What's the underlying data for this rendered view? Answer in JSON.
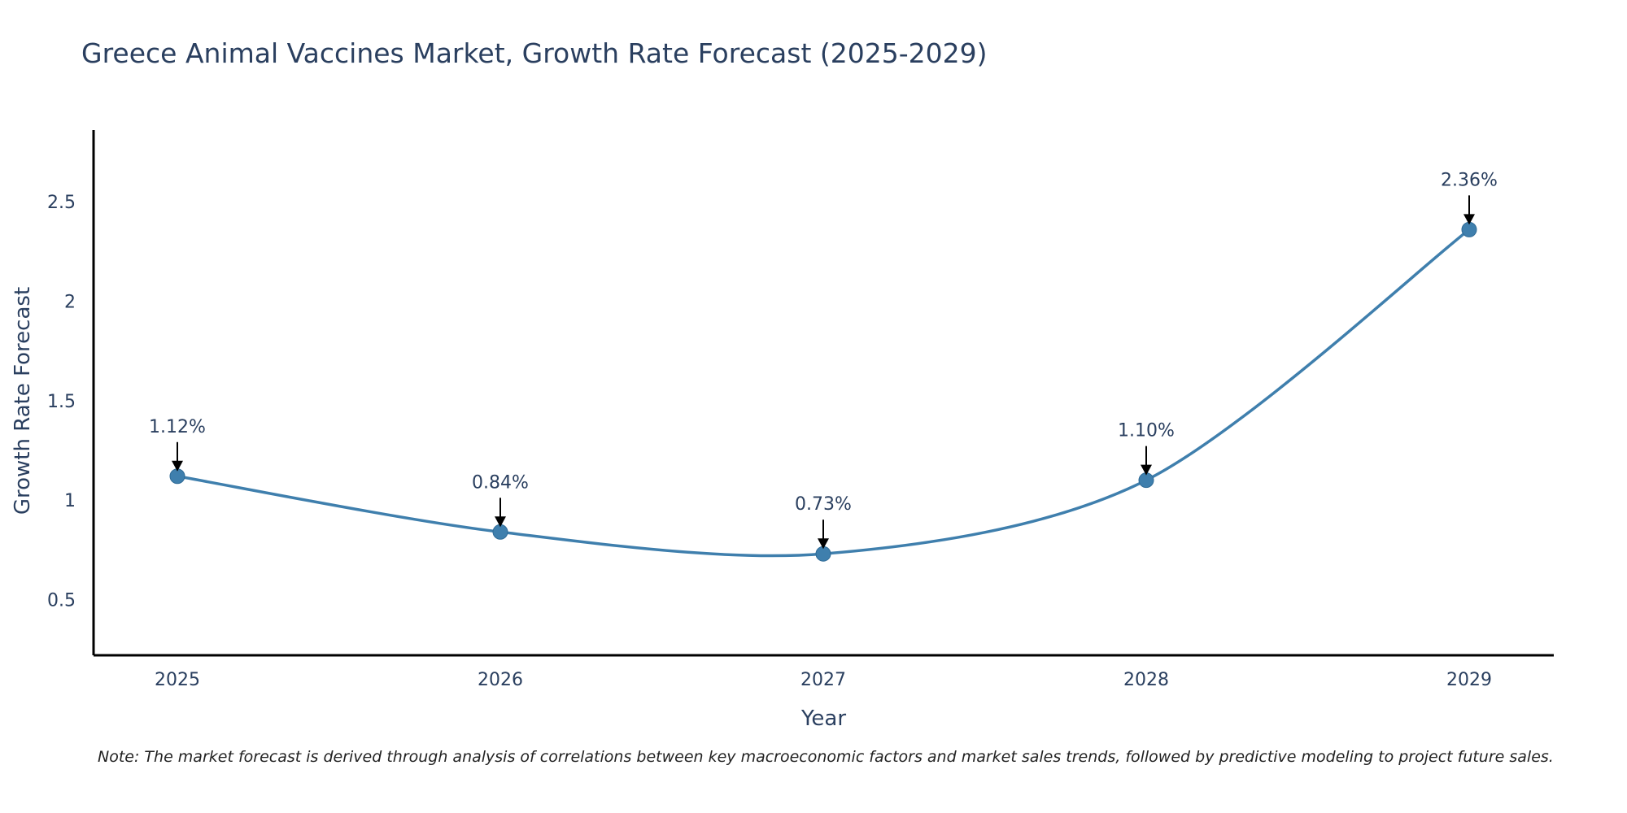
{
  "chart_data": {
    "type": "line",
    "title": "Greece Animal Vaccines Market, Growth Rate Forecast (2025-2029)",
    "xlabel": "Year",
    "ylabel": "Growth Rate Forecast",
    "categories": [
      "2025",
      "2026",
      "2027",
      "2028",
      "2029"
    ],
    "values": [
      1.12,
      0.84,
      0.73,
      1.1,
      2.36
    ],
    "data_labels": [
      "1.12%",
      "0.84%",
      "0.73%",
      "1.10%",
      "2.36%"
    ],
    "y_ticks": [
      0.5,
      1,
      1.5,
      2,
      2.5
    ],
    "y_tick_labels": [
      "0.5",
      "1",
      "1.5",
      "2",
      "2.5"
    ],
    "ylim": [
      0.22,
      2.86
    ],
    "grid": false,
    "smoothing": "spline",
    "line_color": "#3f7fad",
    "marker_color": "#3f7fad",
    "note": "Note: The market forecast is derived through analysis of correlations between key macroeconomic factors and market sales trends, followed by predictive modeling to project future sales."
  }
}
